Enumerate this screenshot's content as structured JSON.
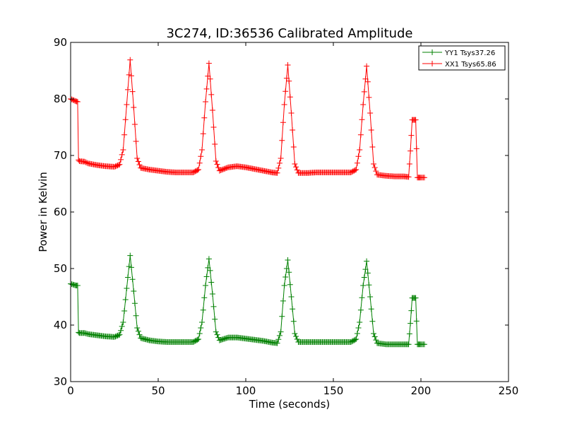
{
  "chart_data": {
    "type": "line",
    "title": "3C274, ID:36536 Calibrated Amplitude",
    "xlabel": "Time (seconds)",
    "ylabel": "Power in Kelvin",
    "xlim": [
      0,
      250
    ],
    "ylim": [
      30,
      90
    ],
    "xticks": [
      "0",
      "50",
      "100",
      "150",
      "200",
      "250"
    ],
    "yticks": [
      "30",
      "40",
      "50",
      "60",
      "70",
      "80",
      "90"
    ],
    "grid": false,
    "legend_position": "top-right",
    "marker": "plus",
    "series": [
      {
        "name": "YY1 Tsys37.26",
        "color": "#008000",
        "x": [
          0,
          3,
          4,
          4.5,
          5,
          8,
          10,
          15,
          20,
          25,
          28,
          30,
          32,
          34,
          36,
          38,
          40,
          45,
          50,
          55,
          60,
          65,
          70,
          73,
          75,
          77,
          79,
          81,
          83,
          85,
          90,
          95,
          100,
          105,
          110,
          115,
          118,
          120,
          122,
          124,
          126,
          128,
          130,
          135,
          140,
          145,
          150,
          155,
          160,
          163,
          165,
          167,
          169,
          171,
          173,
          175,
          180,
          185,
          190,
          193,
          194,
          195,
          196,
          197,
          198,
          199,
          200,
          202
        ],
        "y": [
          47.3,
          47.0,
          47.0,
          38.7,
          38.6,
          38.6,
          38.4,
          38.2,
          38.0,
          37.9,
          38.3,
          40.5,
          46.5,
          52.3,
          46.0,
          39.5,
          37.7,
          37.3,
          37.1,
          37.0,
          37.0,
          37.0,
          37.0,
          37.5,
          40.5,
          47.0,
          51.7,
          45.5,
          38.8,
          37.3,
          37.8,
          37.8,
          37.6,
          37.4,
          37.2,
          36.9,
          36.8,
          38.8,
          47.0,
          51.5,
          45.0,
          38.5,
          37.0,
          37.0,
          37.0,
          37.0,
          37.0,
          37.0,
          37.0,
          37.5,
          40.5,
          47.0,
          51.3,
          45.0,
          38.5,
          36.8,
          36.6,
          36.6,
          36.6,
          36.6,
          40.3,
          44.8,
          44.8,
          44.8,
          36.6,
          36.6,
          36.6,
          36.6
        ]
      },
      {
        "name": "XX1 Tsys65.86",
        "color": "#ff0000",
        "x": [
          0,
          3,
          4,
          4.5,
          5,
          8,
          10,
          15,
          20,
          25,
          28,
          30,
          32,
          34,
          36,
          38,
          40,
          45,
          50,
          55,
          60,
          65,
          70,
          73,
          75,
          77,
          79,
          81,
          83,
          85,
          90,
          95,
          100,
          105,
          110,
          115,
          118,
          120,
          122,
          124,
          126,
          128,
          130,
          135,
          140,
          145,
          150,
          155,
          160,
          163,
          165,
          167,
          169,
          171,
          173,
          175,
          180,
          185,
          190,
          193,
          194,
          195,
          196,
          197,
          198,
          199,
          200,
          202
        ],
        "y": [
          80.0,
          79.6,
          79.5,
          69.2,
          69.0,
          68.9,
          68.6,
          68.3,
          68.1,
          68.0,
          68.4,
          71.0,
          79.0,
          86.9,
          78.5,
          69.5,
          67.8,
          67.5,
          67.3,
          67.1,
          67.0,
          67.0,
          67.0,
          67.5,
          71.0,
          79.5,
          86.3,
          78.0,
          69.0,
          67.3,
          67.9,
          68.1,
          67.9,
          67.6,
          67.3,
          67.0,
          66.9,
          69.5,
          79.0,
          86.0,
          77.5,
          68.5,
          66.9,
          66.9,
          67.0,
          67.0,
          67.0,
          67.0,
          67.0,
          67.5,
          71.0,
          79.0,
          85.8,
          77.5,
          68.5,
          66.6,
          66.4,
          66.3,
          66.3,
          66.2,
          70.8,
          76.3,
          76.3,
          76.3,
          66.1,
          66.1,
          66.1,
          66.1
        ]
      }
    ]
  }
}
